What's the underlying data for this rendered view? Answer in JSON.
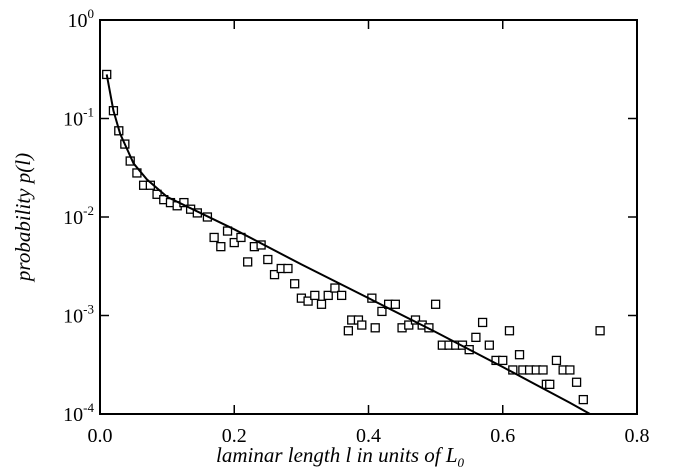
{
  "chart_data": {
    "type": "scatter",
    "x_label": "laminar length l in units of L",
    "x_label_subscript": "0",
    "y_label": "probability p(l)",
    "xlim": [
      0,
      0.8
    ],
    "xticks": [
      {
        "value": 0,
        "label": "0.0"
      },
      0.2,
      0.4,
      0.6,
      0.8
    ],
    "ylim": [
      0.0001,
      1
    ],
    "yticks": [
      {
        "value": 1,
        "label": "10",
        "exponent": "0"
      },
      {
        "value": 0.1,
        "label": "10",
        "exponent": "-1"
      },
      {
        "value": 0.01,
        "label": "10",
        "exponent": "-2"
      },
      {
        "value": 0.001,
        "label": "10",
        "exponent": "-3"
      },
      {
        "value": 0.0001,
        "label": "10",
        "exponent": "-4"
      }
    ],
    "log_y": true,
    "series": [
      {
        "type": "scatter",
        "color": "#000000",
        "x": [
          0.01,
          0.02,
          0.028,
          0.037,
          0.045,
          0.055,
          0.065,
          0.075,
          0.085,
          0.095,
          0.105,
          0.115,
          0.125,
          0.135,
          0.145,
          0.16,
          0.17,
          0.18,
          0.19,
          0.2,
          0.21,
          0.22,
          0.23,
          0.24,
          0.25,
          0.26,
          0.27,
          0.28,
          0.29,
          0.3,
          0.31,
          0.32,
          0.33,
          0.34,
          0.35,
          0.36,
          0.37,
          0.375,
          0.385,
          0.39,
          0.405,
          0.41,
          0.42,
          0.43,
          0.44,
          0.45,
          0.46,
          0.47,
          0.48,
          0.49,
          0.5,
          0.51,
          0.52,
          0.53,
          0.54,
          0.55,
          0.56,
          0.57,
          0.58,
          0.59,
          0.6,
          0.61,
          0.615,
          0.625,
          0.63,
          0.64,
          0.65,
          0.66,
          0.665,
          0.67,
          0.68,
          0.69,
          0.7,
          0.71,
          0.72,
          0.745
        ],
        "values": [
          0.28,
          0.12,
          0.075,
          0.055,
          0.037,
          0.028,
          0.021,
          0.021,
          0.017,
          0.015,
          0.014,
          0.013,
          0.014,
          0.012,
          0.011,
          0.01,
          0.0062,
          0.005,
          0.0072,
          0.0055,
          0.0062,
          0.0035,
          0.005,
          0.0052,
          0.0037,
          0.0026,
          0.003,
          0.003,
          0.0021,
          0.0015,
          0.0014,
          0.0016,
          0.0013,
          0.0016,
          0.0019,
          0.0016,
          0.0007,
          0.0009,
          0.0009,
          0.0008,
          0.0015,
          0.00075,
          0.0011,
          0.0013,
          0.0013,
          0.00075,
          0.0008,
          0.0009,
          0.0008,
          0.00075,
          0.0013,
          0.0005,
          0.0005,
          0.0005,
          0.0005,
          0.00045,
          0.0006,
          0.00085,
          0.0005,
          0.00035,
          0.00035,
          0.0007,
          0.00028,
          0.0004,
          0.00028,
          0.00028,
          0.00028,
          0.00028,
          0.0002,
          0.0002,
          0.00035,
          0.00028,
          0.00028,
          0.00021,
          0.00014,
          0.0007
        ]
      },
      {
        "type": "line",
        "color": "#000000",
        "x": [
          0.01,
          0.02,
          0.03,
          0.05,
          0.07,
          0.1,
          0.2,
          0.3,
          0.4,
          0.5,
          0.6,
          0.7,
          0.73
        ],
        "values": [
          0.28,
          0.12,
          0.07,
          0.035,
          0.024,
          0.016,
          0.0075,
          0.0033,
          0.0015,
          0.00068,
          0.0003,
          0.00013,
          0.0001
        ]
      }
    ]
  }
}
